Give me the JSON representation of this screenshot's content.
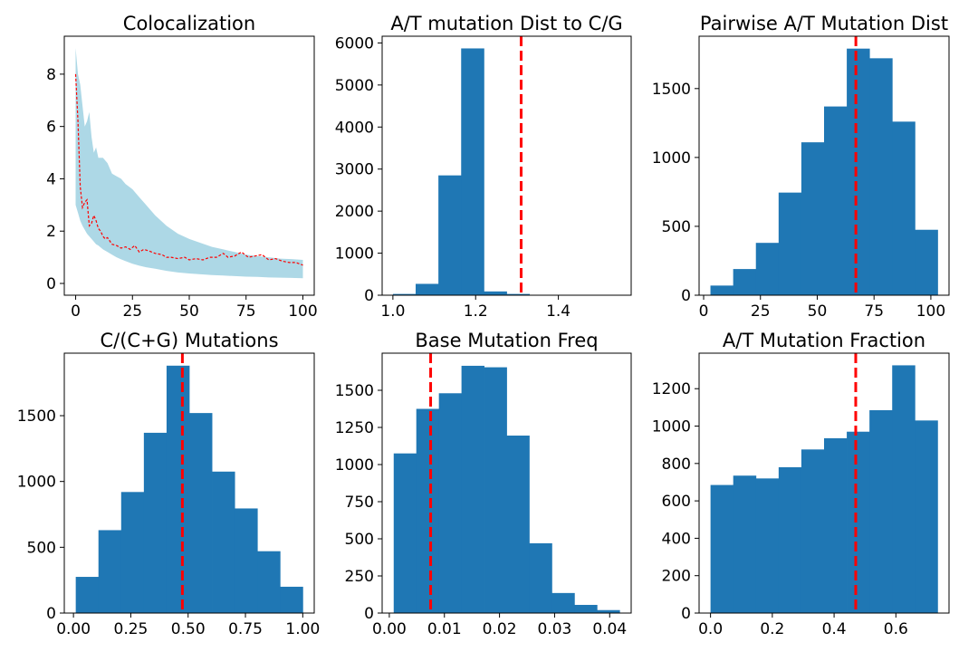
{
  "chart_data": [
    {
      "type": "line",
      "title": "Colocalization",
      "xlim": [
        -5,
        105
      ],
      "ylim": [
        -0.45,
        9.45
      ],
      "xticks": [
        0,
        25,
        50,
        75,
        100
      ],
      "yticks": [
        0,
        2,
        4,
        6,
        8
      ],
      "band_color": "#add8e6",
      "line_color": "#ff0000",
      "band": {
        "x": [
          0,
          1,
          2,
          3,
          4,
          5,
          6,
          7,
          8,
          9,
          10,
          12,
          14,
          16,
          18,
          20,
          22,
          25,
          28,
          31,
          35,
          40,
          45,
          50,
          55,
          60,
          65,
          70,
          75,
          80,
          85,
          90,
          95,
          100
        ],
        "lower": [
          3.0,
          2.7,
          2.4,
          2.2,
          2.05,
          1.9,
          1.8,
          1.7,
          1.6,
          1.5,
          1.45,
          1.3,
          1.2,
          1.1,
          1.0,
          0.92,
          0.85,
          0.75,
          0.68,
          0.62,
          0.56,
          0.48,
          0.42,
          0.38,
          0.35,
          0.32,
          0.3,
          0.28,
          0.26,
          0.25,
          0.23,
          0.22,
          0.21,
          0.2
        ],
        "upper": [
          9.0,
          8.0,
          7.6,
          6.8,
          6.0,
          6.2,
          6.55,
          5.6,
          5.0,
          5.2,
          4.8,
          4.8,
          4.6,
          4.2,
          4.1,
          4.0,
          3.8,
          3.6,
          3.3,
          3.0,
          2.6,
          2.2,
          1.9,
          1.7,
          1.55,
          1.4,
          1.3,
          1.2,
          1.1,
          1.05,
          1.0,
          0.95,
          0.93,
          0.9
        ]
      },
      "series": [
        {
          "x": [
            0,
            1,
            2,
            3,
            4,
            5,
            6,
            7,
            8,
            9,
            10,
            11,
            12,
            13,
            14,
            16,
            18,
            20,
            22,
            24,
            26,
            28,
            30,
            32,
            35,
            38,
            40,
            42,
            45,
            48,
            50,
            53,
            56,
            59,
            62,
            65,
            67,
            70,
            73,
            76,
            79,
            82,
            85,
            88,
            91,
            94,
            97,
            100
          ],
          "y": [
            8.0,
            6.2,
            3.7,
            2.9,
            3.1,
            3.2,
            2.2,
            2.3,
            2.6,
            2.4,
            2.1,
            2.0,
            1.8,
            1.7,
            1.75,
            1.5,
            1.45,
            1.35,
            1.4,
            1.3,
            1.45,
            1.2,
            1.3,
            1.25,
            1.15,
            1.1,
            1.0,
            1.0,
            0.95,
            1.0,
            0.9,
            0.95,
            0.9,
            1.0,
            1.0,
            1.15,
            1.0,
            1.05,
            1.2,
            1.0,
            1.05,
            1.1,
            0.9,
            0.95,
            0.85,
            0.8,
            0.8,
            0.7
          ]
        }
      ]
    },
    {
      "type": "bar",
      "title": "A/T mutation Dist to C/G",
      "bins": [
        1.0,
        1.055,
        1.11,
        1.165,
        1.22,
        1.275,
        1.33,
        1.385,
        1.44,
        1.495,
        1.55
      ],
      "counts": [
        30,
        270,
        2850,
        5870,
        90,
        30,
        10,
        5,
        3,
        2
      ],
      "xlim": [
        0.974,
        1.576
      ],
      "ylim": [
        0,
        6160
      ],
      "xticks": [
        1.0,
        1.2,
        1.4
      ],
      "xtick_labels": [
        "1.0",
        "1.2",
        "1.4"
      ],
      "yticks": [
        0,
        1000,
        2000,
        3000,
        4000,
        5000,
        6000
      ],
      "vline": 1.31,
      "bar_color": "#1f77b4",
      "vline_color": "#ff0000"
    },
    {
      "type": "bar",
      "title": "Pairwise A/T Mutation Dist",
      "bins": [
        3,
        13,
        23,
        33,
        43,
        53,
        63,
        73,
        83,
        93,
        103
      ],
      "counts": [
        70,
        190,
        380,
        745,
        1110,
        1370,
        1790,
        1720,
        1260,
        475
      ],
      "xlim": [
        -2,
        108
      ],
      "ylim": [
        0,
        1880
      ],
      "xticks": [
        0,
        25,
        50,
        75,
        100
      ],
      "yticks": [
        0,
        500,
        1000,
        1500
      ],
      "vline": 67,
      "bar_color": "#1f77b4",
      "vline_color": "#ff0000"
    },
    {
      "type": "bar",
      "title": "C/(C+G) Mutations",
      "bins": [
        0.01,
        0.109,
        0.208,
        0.307,
        0.406,
        0.505,
        0.604,
        0.703,
        0.802,
        0.901,
        1.0
      ],
      "counts": [
        275,
        630,
        920,
        1370,
        1880,
        1520,
        1075,
        795,
        470,
        200
      ],
      "xlim": [
        -0.04,
        1.05
      ],
      "ylim": [
        0,
        1975
      ],
      "xticks": [
        0,
        0.25,
        0.5,
        0.75,
        1.0
      ],
      "xtick_labels": [
        "0.00",
        "0.25",
        "0.50",
        "0.75",
        "1.00"
      ],
      "yticks": [
        0,
        500,
        1000,
        1500
      ],
      "vline": 0.475,
      "bar_color": "#1f77b4",
      "vline_color": "#ff0000"
    },
    {
      "type": "bar",
      "title": "Base Mutation Freq",
      "bins": [
        0.0008,
        0.0049,
        0.009,
        0.0131,
        0.0172,
        0.0213,
        0.0254,
        0.0295,
        0.0336,
        0.0377,
        0.0418
      ],
      "counts": [
        1075,
        1375,
        1480,
        1665,
        1655,
        1195,
        470,
        135,
        55,
        20
      ],
      "xlim": [
        -0.0013,
        0.0439
      ],
      "ylim": [
        0,
        1750
      ],
      "xticks": [
        0.0,
        0.01,
        0.02,
        0.03,
        0.04
      ],
      "xtick_labels": [
        "0.00",
        "0.01",
        "0.02",
        "0.03",
        "0.04"
      ],
      "yticks": [
        0,
        250,
        500,
        750,
        1000,
        1250,
        1500
      ],
      "vline": 0.0075,
      "bar_color": "#1f77b4",
      "vline_color": "#ff0000"
    },
    {
      "type": "bar",
      "title": "A/T Mutation Fraction",
      "bins": [
        0.0,
        0.0735,
        0.147,
        0.2205,
        0.294,
        0.3675,
        0.441,
        0.5145,
        0.588,
        0.6615,
        0.735
      ],
      "counts": [
        685,
        735,
        720,
        780,
        875,
        935,
        970,
        1085,
        1325,
        1030
      ],
      "xlim": [
        -0.037,
        0.772
      ],
      "ylim": [
        0,
        1390
      ],
      "xticks": [
        0.0,
        0.2,
        0.4,
        0.6
      ],
      "xtick_labels": [
        "0.0",
        "0.2",
        "0.4",
        "0.6"
      ],
      "yticks": [
        0,
        200,
        400,
        600,
        800,
        1000,
        1200
      ],
      "vline": 0.47,
      "bar_color": "#1f77b4",
      "vline_color": "#ff0000"
    }
  ]
}
